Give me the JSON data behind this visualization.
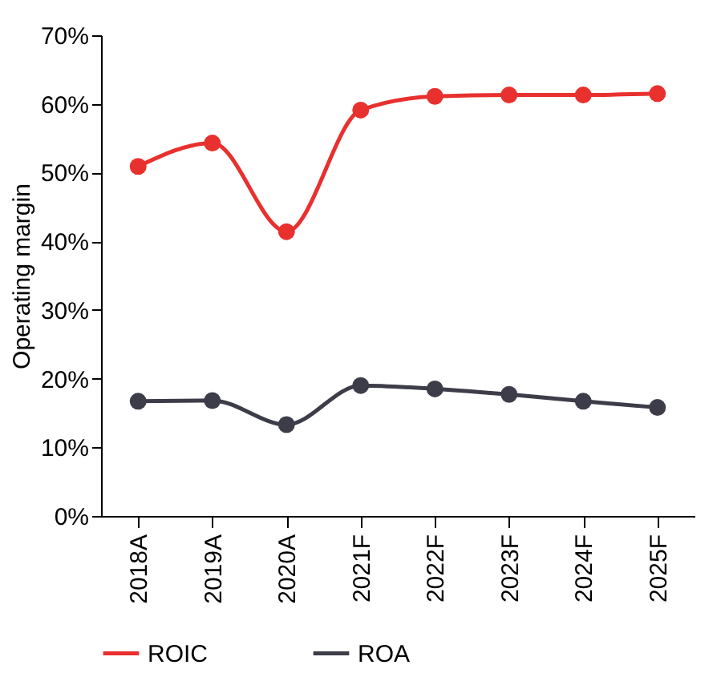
{
  "chart_data": {
    "type": "line",
    "ylabel": "Operating margin",
    "categories": [
      "2018A",
      "2019A",
      "2020A",
      "2021F",
      "2022F",
      "2023F",
      "2024F",
      "2025F"
    ],
    "series": [
      {
        "name": "ROIC",
        "color": "#e8312f",
        "values": [
          50.9,
          54.3,
          41.4,
          59.1,
          61.1,
          61.3,
          61.3,
          61.5
        ]
      },
      {
        "name": "ROA",
        "color": "#3d3d4a",
        "values": [
          16.7,
          16.8,
          13.3,
          19.0,
          18.5,
          17.7,
          16.7,
          15.8
        ]
      }
    ],
    "ylim": [
      0,
      70
    ],
    "yticks": [
      {
        "value": 0,
        "label": "0%"
      },
      {
        "value": 10,
        "label": "10%"
      },
      {
        "value": 20,
        "label": "20%"
      },
      {
        "value": 30,
        "label": "30%"
      },
      {
        "value": 40,
        "label": "40%"
      },
      {
        "value": 50,
        "label": "50%"
      },
      {
        "value": 60,
        "label": "60%"
      },
      {
        "value": 70,
        "label": "70%"
      }
    ],
    "grid": false,
    "legend": "bottom",
    "marker": "circle",
    "line_style": "solid"
  }
}
